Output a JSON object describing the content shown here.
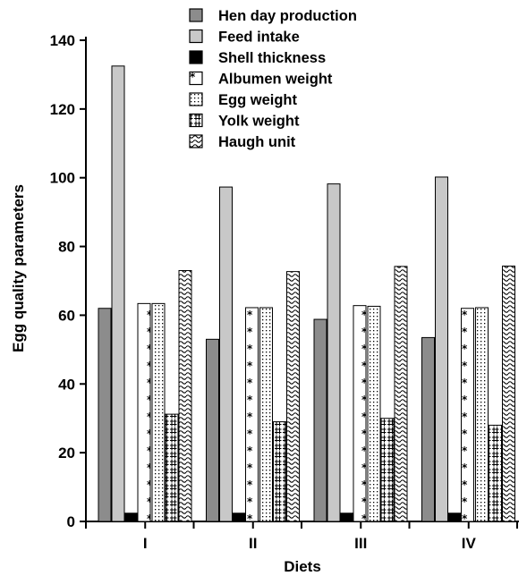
{
  "chart_data": {
    "type": "bar",
    "title": "",
    "xlabel": "Diets",
    "ylabel": "Egg quality parameters",
    "categories": [
      "I",
      "II",
      "III",
      "IV"
    ],
    "ylim": [
      0,
      140
    ],
    "yticks": [
      0,
      20,
      40,
      60,
      80,
      100,
      120,
      140
    ],
    "grid": false,
    "legend_position": "top",
    "series": [
      {
        "name": "Hen day production",
        "values": [
          62,
          53,
          58.8,
          53.5
        ],
        "pattern": "solid-dark",
        "color": "#8c8c8c"
      },
      {
        "name": "Feed intake",
        "values": [
          132.5,
          97.3,
          98.2,
          100.2
        ],
        "pattern": "solid-light",
        "color": "#c8c8c8"
      },
      {
        "name": "Shell thickness",
        "values": [
          2.4,
          2.4,
          2.4,
          2.4
        ],
        "pattern": "solid-black",
        "color": "#000000"
      },
      {
        "name": "Albumen weight",
        "values": [
          63.4,
          62.2,
          62.8,
          62
        ],
        "pattern": "star"
      },
      {
        "name": "Egg weight",
        "values": [
          63.4,
          62.2,
          62.6,
          62.2
        ],
        "pattern": "dots"
      },
      {
        "name": "Yolk weight",
        "values": [
          31.2,
          29,
          30,
          28
        ],
        "pattern": "hash"
      },
      {
        "name": "Haugh unit",
        "values": [
          73,
          72.7,
          74.2,
          74.3
        ],
        "pattern": "wave"
      }
    ]
  }
}
